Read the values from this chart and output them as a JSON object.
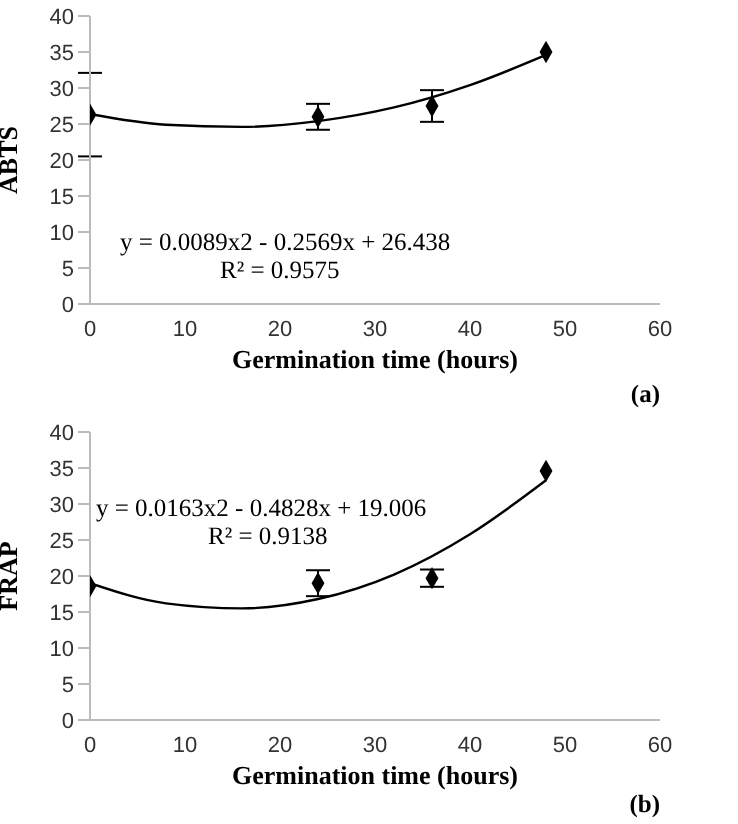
{
  "chart_data": [
    {
      "type": "scatter",
      "xlabel": "Germination time (hours)",
      "ylabel": "ABTS",
      "xlim": [
        0,
        60
      ],
      "xticks": [
        0,
        10,
        20,
        30,
        40,
        50,
        60
      ],
      "ylim": [
        0,
        40
      ],
      "yticks": [
        0,
        5,
        10,
        15,
        20,
        25,
        30,
        35,
        40
      ],
      "grid": false,
      "legend": false,
      "marker": "diamond",
      "annotations": [
        "y = 0.0089x2 - 0.2569x + 26.438",
        "R² = 0.9575",
        "(a)"
      ],
      "series": [
        {
          "color": "#000000",
          "x": [
            0,
            24,
            36,
            48
          ],
          "values": [
            26.3,
            26,
            27.5,
            35
          ],
          "errors": [
            5.8,
            1.8,
            2.2,
            null
          ]
        },
        {
          "type": "line",
          "marker": "none",
          "color": "#000000",
          "x": [
            0,
            8,
            16,
            24,
            32,
            40,
            48
          ],
          "values": [
            26.4,
            24.9,
            24.6,
            25.4,
            27.3,
            30.4,
            34.6
          ]
        }
      ]
    },
    {
      "type": "scatter",
      "xlabel": "Germination time (hours)",
      "ylabel": "FRAP",
      "xlim": [
        0,
        60
      ],
      "xticks": [
        0,
        10,
        20,
        30,
        40,
        50,
        60
      ],
      "ylim": [
        0,
        40
      ],
      "yticks": [
        0,
        5,
        10,
        15,
        20,
        25,
        30,
        35,
        40
      ],
      "grid": false,
      "legend": false,
      "marker": "diamond",
      "annotations": [
        "y = 0.0163x2 - 0.4828x + 19.006",
        "R² = 0.9138",
        "(b)"
      ],
      "series": [
        {
          "color": "#000000",
          "x": [
            0,
            24,
            36,
            48
          ],
          "values": [
            18.6,
            19,
            19.7,
            34.6
          ],
          "errors": [
            null,
            1.8,
            1.2,
            null
          ]
        },
        {
          "type": "line",
          "marker": "none",
          "color": "#000000",
          "x": [
            0,
            8,
            16,
            24,
            32,
            40,
            48
          ],
          "values": [
            19,
            16.2,
            15.5,
            16.8,
            20.2,
            25.8,
            33.3
          ]
        }
      ]
    }
  ]
}
